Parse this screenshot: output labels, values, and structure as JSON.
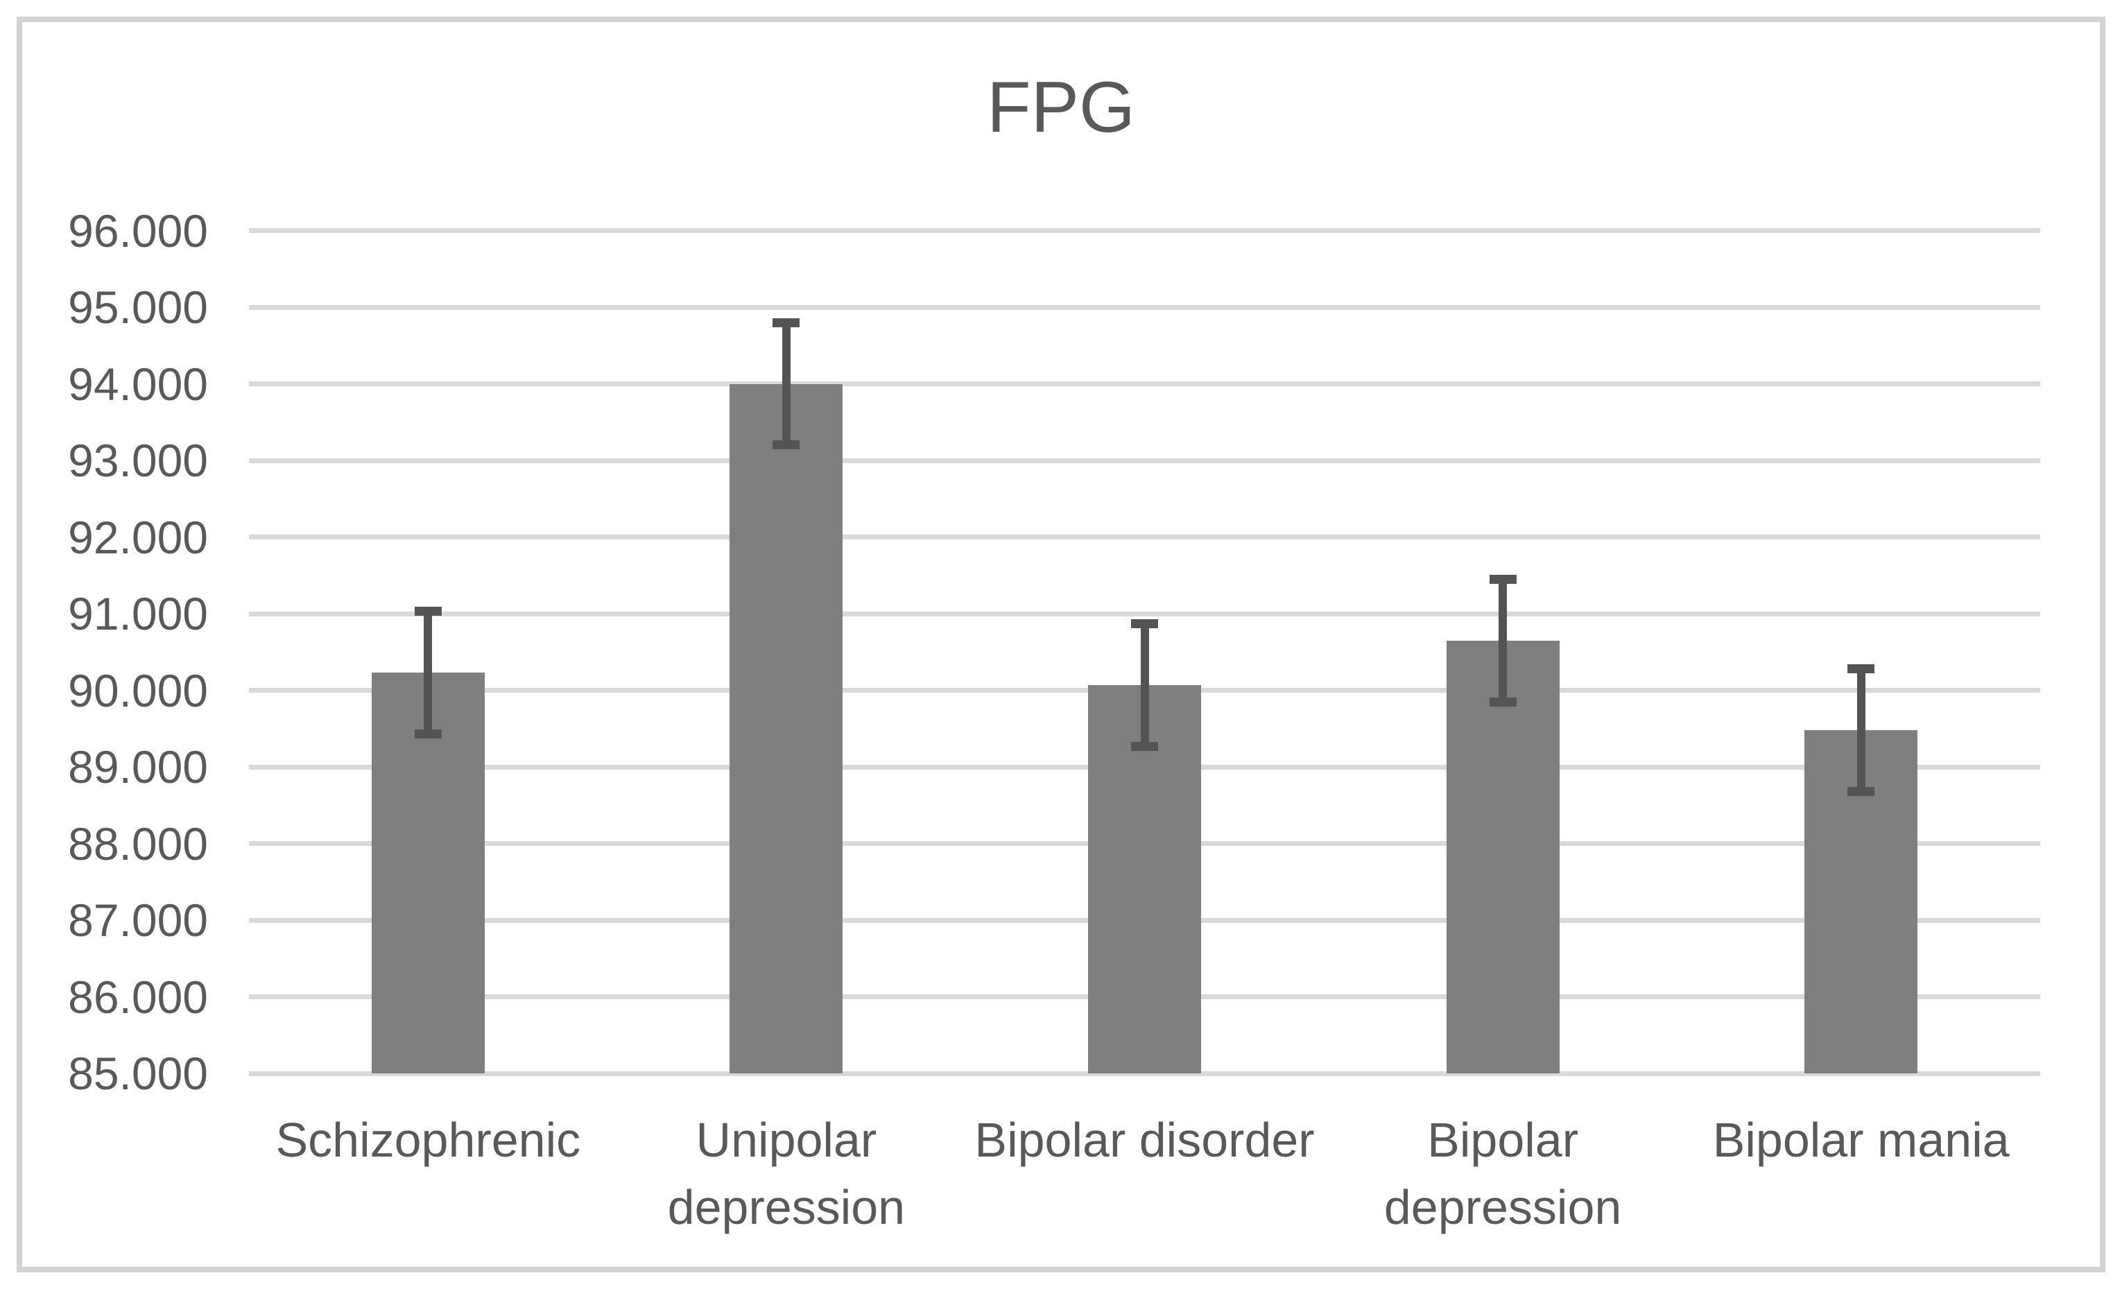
{
  "page": {
    "background": "#FFFFFF"
  },
  "chart": {
    "title": "FPG"
  },
  "chart_data": {
    "type": "bar",
    "title": "FPG",
    "categories": [
      "Schizophrenic",
      "Unipolar depression",
      "Bipolar disorder",
      "Bipolar depression",
      "Bipolar mania"
    ],
    "category_display_lines": [
      [
        "Schizophrenic"
      ],
      [
        "Unipolar",
        "depression"
      ],
      [
        "Bipolar disorder"
      ],
      [
        "Bipolar",
        "depression"
      ],
      [
        "Bipolar mania"
      ]
    ],
    "series": [
      {
        "name": "FPG",
        "values": [
          90.23,
          94.0,
          90.07,
          90.65,
          89.48
        ],
        "error_plus": [
          0.8,
          0.8,
          0.8,
          0.8,
          0.8
        ],
        "error_minus": [
          0.8,
          0.8,
          0.8,
          0.8,
          0.8
        ]
      }
    ],
    "ylim": [
      85,
      96
    ],
    "ytick_step": 1,
    "ytick_labels": [
      "85.000",
      "86.000",
      "87.000",
      "88.000",
      "89.000",
      "90.000",
      "91.000",
      "92.000",
      "93.000",
      "94.000",
      "95.000",
      "96.000"
    ],
    "xlabel": "",
    "ylabel": "",
    "legend": "none",
    "grid": "horizontal",
    "bar_color": "#7F7F7F",
    "error_bar_color": "#545454",
    "gridline_color": "#D9D9D9",
    "text_color": "#595959",
    "frame_border_color": "#D3D3D3"
  }
}
